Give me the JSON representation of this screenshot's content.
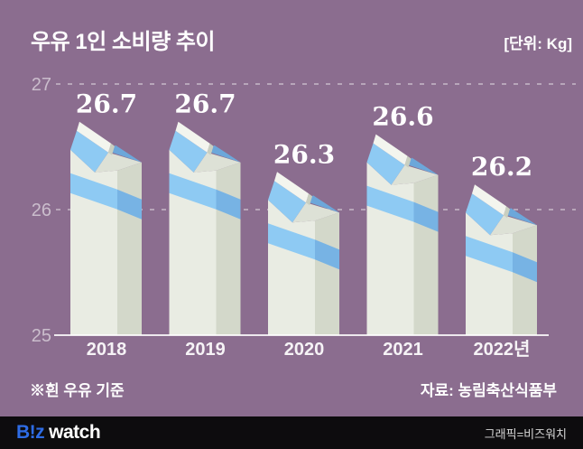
{
  "title": "우유 1인 소비량 추이",
  "unit_label": "[단위: Kg]",
  "footnote": "※흰 우유 기준",
  "source": "자료: 농림축산식품부",
  "footer": {
    "logo_b": "B!z",
    "logo_watch": "watch",
    "credit": "그래픽=비즈워치"
  },
  "colors": {
    "background": "#8b6d8f",
    "footer_bg": "#0d0c0e",
    "logo_blue": "#2e6ce5",
    "carton_front": "#e9ece3",
    "carton_side": "#d3d8ca",
    "band_front": "#8ecaf3",
    "band_side": "#77b3e4",
    "roof": "#8ecaf3",
    "roof_back": "#6ca7da",
    "gable": "#dde1d6",
    "cap": "#f3f5ee",
    "cap_end": "#c9cfc0",
    "grid_line": "rgba(255,255,255,0.45)",
    "axis_line": "rgba(255,255,255,0.85)",
    "ytick_text": "rgba(255,255,255,0.55)",
    "xtick_text": "rgba(255,255,255,0.92)",
    "value_text": "#ffffff"
  },
  "chart_data": {
    "type": "bar",
    "title": "우유 1인 소비량 추이",
    "unit": "Kg",
    "categories": [
      "2018",
      "2019",
      "2020",
      "2021",
      "2022년"
    ],
    "values": [
      26.7,
      26.7,
      26.3,
      26.6,
      26.2
    ],
    "value_labels": [
      "26.7",
      "26.7",
      "26.3",
      "26.6",
      "26.2"
    ],
    "ylim": [
      25,
      27
    ],
    "yticks": [
      25,
      26,
      27
    ],
    "grid": "horizontal-dashed",
    "legend": "none",
    "bar_style": "milk-carton-pictogram"
  }
}
